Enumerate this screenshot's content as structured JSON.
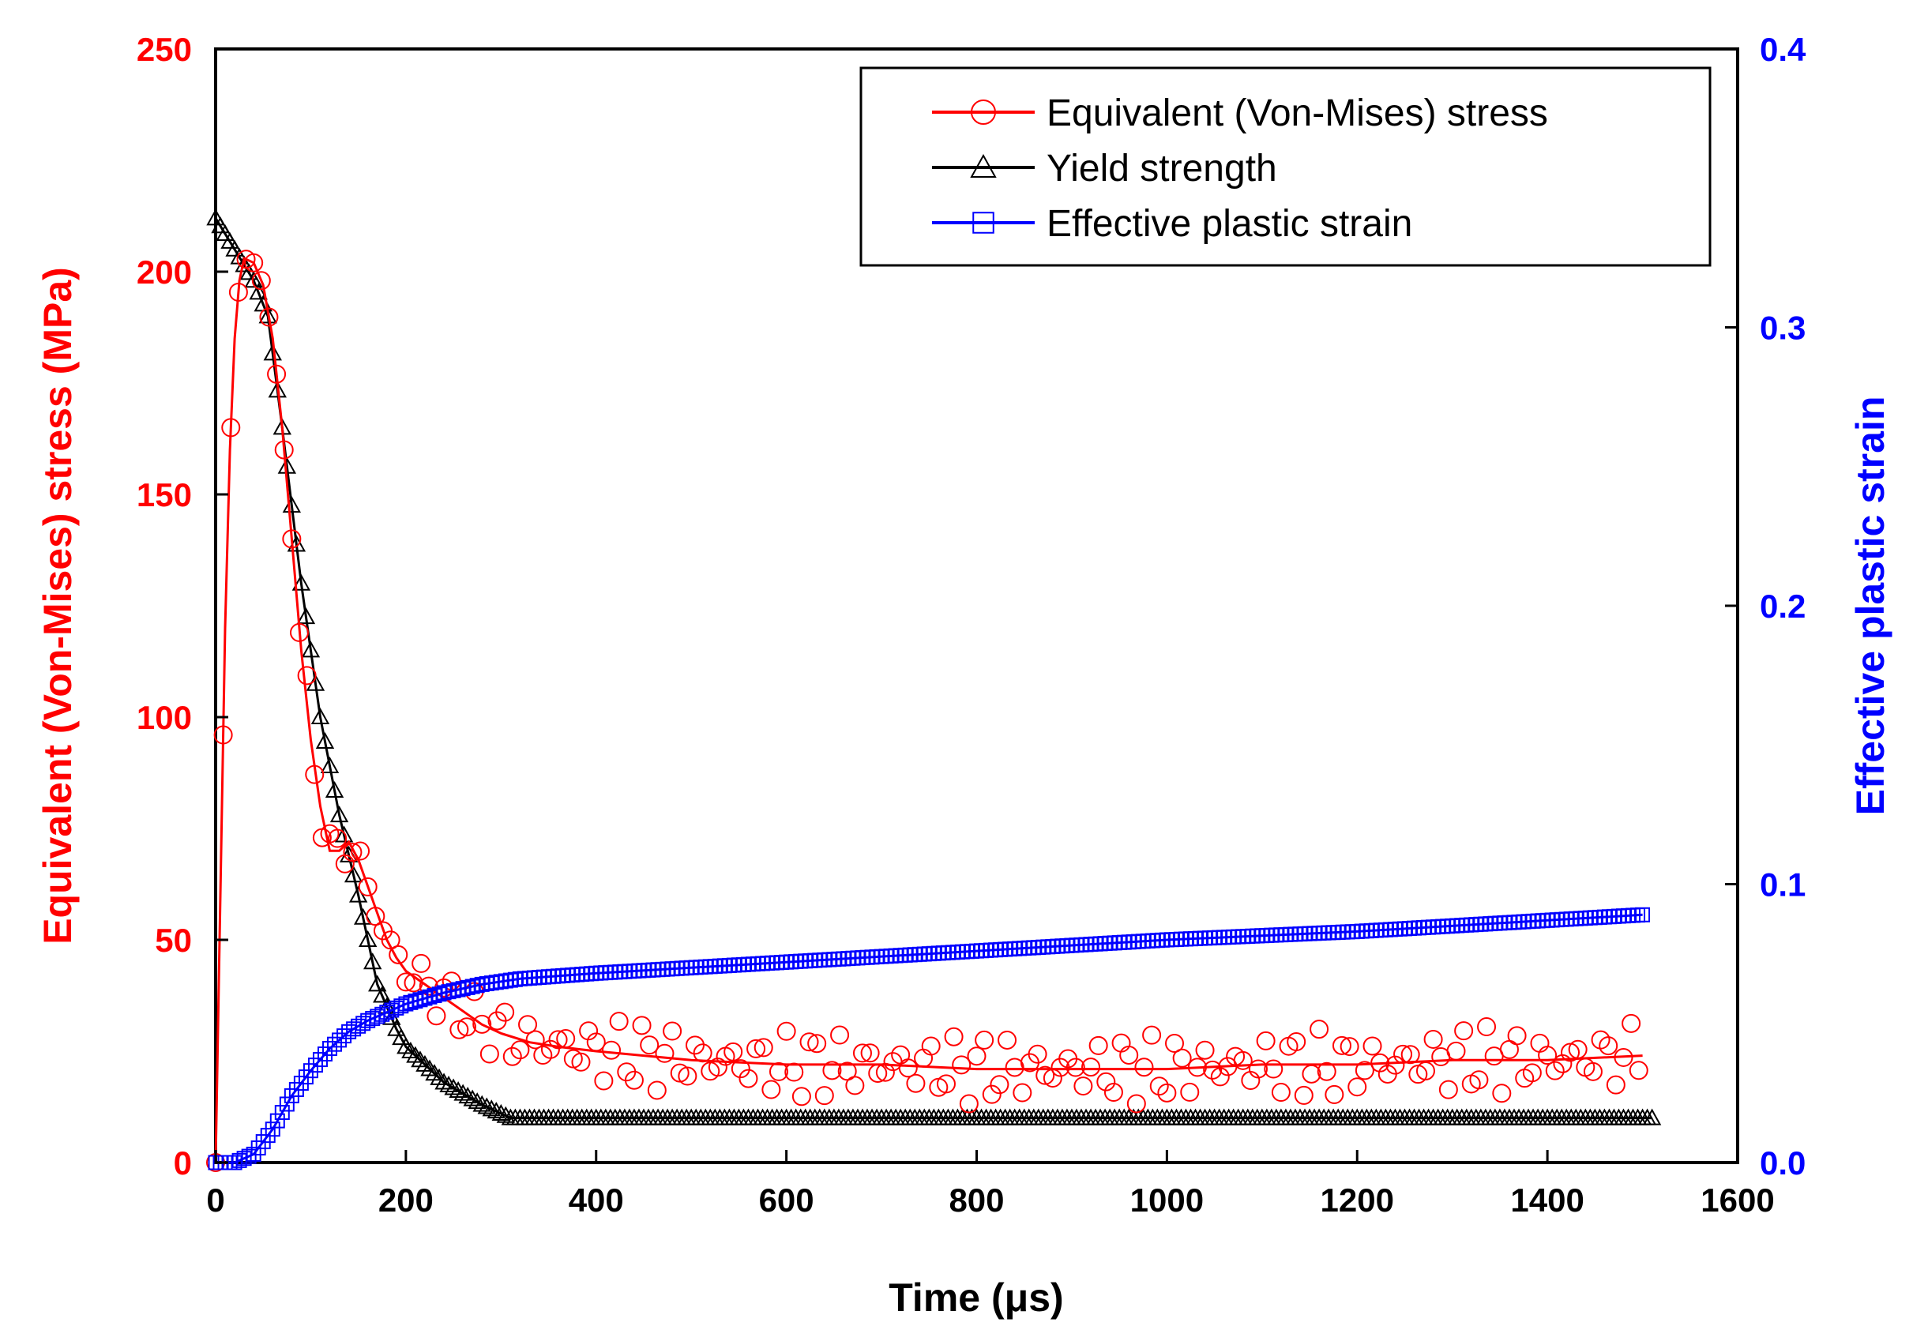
{
  "chart_data": {
    "type": "line",
    "title": "",
    "xlabel": "Time (μs)",
    "ylabel": "Equivalent (Von-Mises) stress (MPa)",
    "y2label": "Effective plastic strain",
    "xlim": [
      0,
      1600
    ],
    "ylim": [
      0,
      250
    ],
    "y2lim": [
      0,
      0.4
    ],
    "x_ticks": [
      "0",
      "200",
      "400",
      "600",
      "800",
      "1000",
      "1200",
      "1400",
      "1600"
    ],
    "y_ticks": [
      "0",
      "50",
      "100",
      "150",
      "200",
      "250"
    ],
    "y2_ticks": [
      "0.0",
      "0.1",
      "0.2",
      "0.3",
      "0.4"
    ],
    "grid": false,
    "legend_position": "top-right",
    "colors": {
      "stress": "#ff0000",
      "yield": "#000000",
      "strain": "#0000ff",
      "left_axis": "#ff0000",
      "right_axis": "#0000ff"
    },
    "series": [
      {
        "name": "Equivalent (Von-Mises) stress",
        "axis": "left",
        "marker": "circle",
        "x": [
          0,
          5,
          10,
          15,
          20,
          25,
          30,
          40,
          50,
          60,
          70,
          80,
          90,
          100,
          110,
          120,
          130,
          140,
          150,
          160,
          170,
          180,
          190,
          200,
          220,
          240,
          260,
          280,
          300,
          330,
          360,
          400,
          450,
          500,
          600,
          700,
          800,
          900,
          1000,
          1100,
          1200,
          1300,
          1400,
          1500
        ],
        "values": [
          0,
          60,
          120,
          160,
          185,
          198,
          203,
          202,
          197,
          185,
          165,
          140,
          115,
          95,
          80,
          70,
          70,
          72,
          68,
          62,
          56,
          50,
          46,
          43,
          40,
          37,
          34,
          31,
          29,
          27,
          26,
          25,
          24,
          23,
          22,
          22,
          21,
          21,
          21,
          22,
          22,
          23,
          23,
          24
        ]
      },
      {
        "name": "Yield strength",
        "axis": "left",
        "marker": "triangle",
        "x": [
          0,
          20,
          40,
          55,
          70,
          90,
          110,
          130,
          150,
          170,
          190,
          200,
          240,
          280,
          310,
          330,
          400,
          600,
          800,
          1000,
          1200,
          1400,
          1510
        ],
        "values": [
          212,
          205,
          198,
          190,
          165,
          130,
          100,
          78,
          60,
          40,
          30,
          26,
          18,
          13,
          10,
          10,
          10,
          10,
          10,
          10,
          10,
          10,
          10
        ]
      },
      {
        "name": "Effective plastic strain",
        "axis": "right",
        "marker": "square",
        "x": [
          0,
          20,
          40,
          60,
          80,
          100,
          120,
          140,
          160,
          180,
          200,
          240,
          280,
          320,
          400,
          500,
          600,
          800,
          1000,
          1200,
          1400,
          1500
        ],
        "values": [
          0,
          0.0,
          0.003,
          0.012,
          0.024,
          0.033,
          0.041,
          0.047,
          0.051,
          0.054,
          0.057,
          0.061,
          0.064,
          0.066,
          0.068,
          0.07,
          0.072,
          0.076,
          0.08,
          0.083,
          0.087,
          0.089
        ]
      }
    ]
  }
}
